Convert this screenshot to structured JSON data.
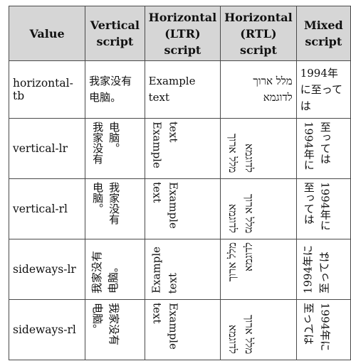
{
  "headers": [
    "Value",
    "Vertical script",
    "Horizontal (LTR) script",
    "Horizontal (RTL) script",
    "Mixed script"
  ],
  "samples": {
    "vertical": "我家没有电脑。",
    "ltr": "Example text",
    "rtl": "מלל ארוך לדוגמא",
    "mixed": "1994年に至っては"
  },
  "rows": [
    {
      "value": "horizontal-tb"
    },
    {
      "value": "vertical-lr"
    },
    {
      "value": "vertical-rl"
    },
    {
      "value": "sideways-lr"
    },
    {
      "value": "sideways-rl"
    }
  ]
}
